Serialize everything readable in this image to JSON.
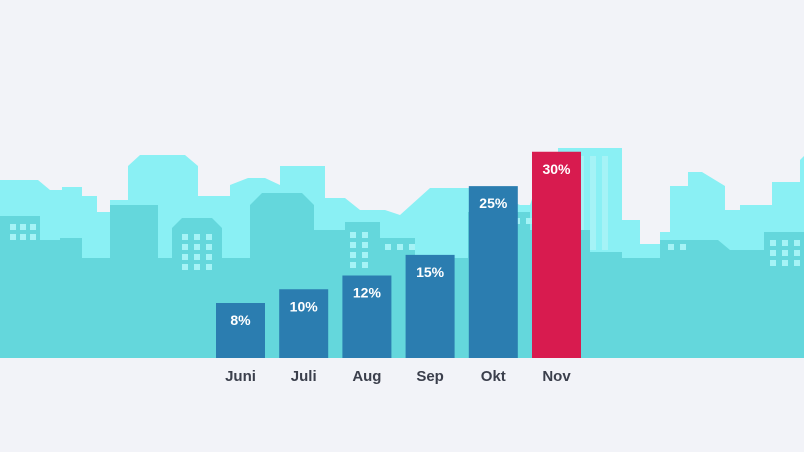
{
  "chart_data": {
    "type": "bar",
    "categories": [
      "Juni",
      "Juli",
      "Aug",
      "Sep",
      "Okt",
      "Nov"
    ],
    "values": [
      8,
      10,
      12,
      15,
      25,
      30
    ],
    "value_labels": [
      "8%",
      "10%",
      "12%",
      "15%",
      "25%",
      "30%"
    ],
    "ylim": [
      0,
      32
    ],
    "highlight_index": 5,
    "grid": false,
    "legend": "none",
    "title": "",
    "xlabel": "",
    "ylabel": ""
  },
  "colors": {
    "background": "#f2f3f8",
    "skyline_back": "#8af0f4",
    "skyline_front": "#64d7dc",
    "window": "#a5f3f6",
    "bar": "#2b7db0",
    "bar_highlight": "#d81b4f",
    "bar_text": "#ffffff",
    "axis_text": "#3b3f4c"
  }
}
